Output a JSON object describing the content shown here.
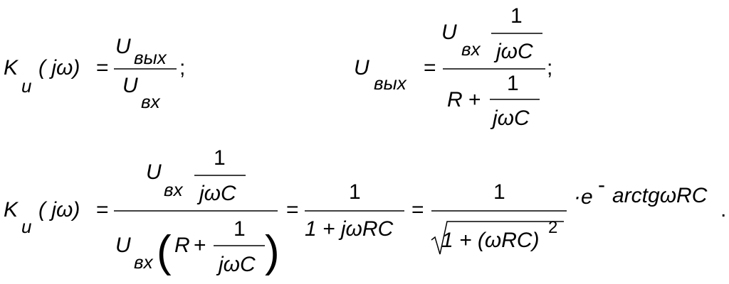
{
  "eq1": {
    "k": "K",
    "k_sub": "u",
    "arg": "( jω)",
    "eq": "=",
    "num": "U",
    "num_sub": "вых",
    "den": "U",
    "den_sub": "вх",
    "end": ";"
  },
  "eq2": {
    "lhs": "U",
    "lhs_sub": "вых",
    "eq": "=",
    "num": "U",
    "num_sub": "вх",
    "one": "1",
    "jwc": "jωC",
    "r": "R",
    "plus": "+",
    "den_one": "1",
    "den_jwc": "jωC",
    "end": ";"
  },
  "eq3": {
    "k": "K",
    "k_sub": "u",
    "arg": "( jω)",
    "eq1": "=",
    "num": "U",
    "num_sub": "вх",
    "num_one": "1",
    "num_jwc": "jωC",
    "den": "U",
    "den_sub": "вх",
    "lparen": "(",
    "r": "R",
    "plus": "+",
    "den_one": "1",
    "den_jwc": "jωC",
    "rparen": ")",
    "eq2": "=",
    "f2_num": "1",
    "f2_den": "1 + jωRC",
    "eq3": "=",
    "f3_num": "1",
    "f3_den": "1 + (ωRC)",
    "f3_exp": "2",
    "mult": "·e",
    "exp_sign": "-",
    "exp": "arctgωRC",
    "end": "."
  }
}
